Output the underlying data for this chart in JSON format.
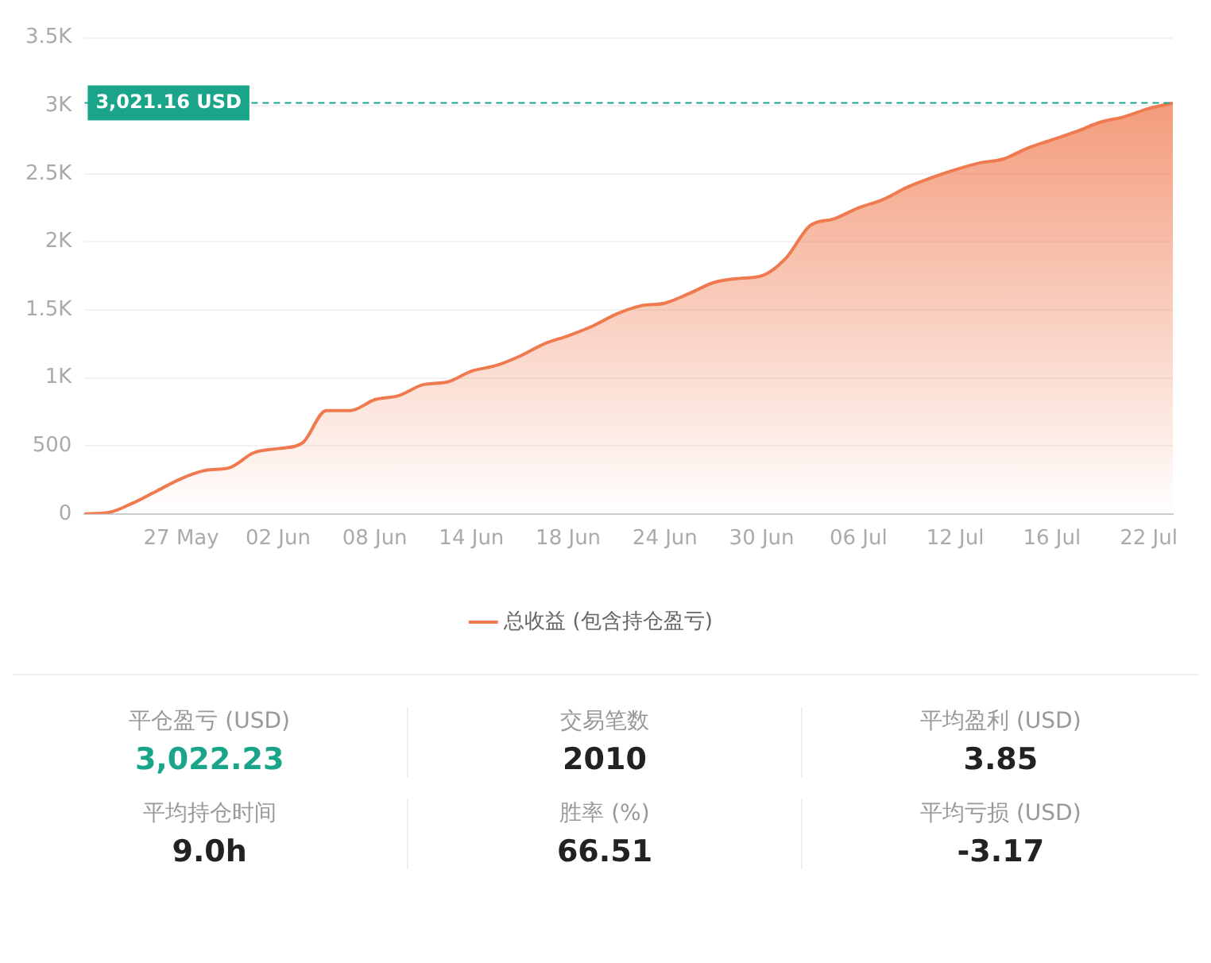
{
  "chart_data": [
    {
      "type": "area",
      "categories": [
        null,
        null,
        null,
        null,
        "27 May",
        null,
        null,
        null,
        "02 Jun",
        null,
        null,
        null,
        "08 Jun",
        null,
        null,
        null,
        "14 Jun",
        null,
        null,
        null,
        "18 Jun",
        null,
        null,
        null,
        "24 Jun",
        null,
        null,
        null,
        "30 Jun",
        null,
        null,
        null,
        "06 Jul",
        null,
        null,
        null,
        "12 Jul",
        null,
        null,
        null,
        "16 Jul",
        null,
        null,
        null,
        "22 Jul",
        null
      ],
      "series": [
        {
          "name": "总收益 (包含持仓盈亏)",
          "color": "#f07a4f",
          "values": [
            0,
            10,
            80,
            170,
            260,
            320,
            340,
            450,
            480,
            520,
            760,
            760,
            840,
            870,
            950,
            970,
            1050,
            1090,
            1160,
            1250,
            1310,
            1380,
            1470,
            1530,
            1550,
            1620,
            1700,
            1730,
            1750,
            1880,
            2120,
            2170,
            2250,
            2310,
            2400,
            2470,
            2530,
            2580,
            2610,
            2690,
            2750,
            2810,
            2880,
            2920,
            2980,
            3021.16
          ]
        }
      ],
      "ylim": [
        0,
        3500
      ],
      "yticks": [
        0,
        500,
        {
          "value": 1000,
          "label": "1K"
        },
        {
          "value": 1500,
          "label": "1.5K"
        },
        {
          "value": 2000,
          "label": "2K"
        },
        {
          "value": 2500,
          "label": "2.5K"
        },
        {
          "value": 3000,
          "label": "3K"
        },
        {
          "value": 3500,
          "label": "3.5K"
        }
      ],
      "grid": "y",
      "legend": "bottom",
      "ref_lines": [
        {
          "axis": "y",
          "value": 3021.16,
          "label": "3,021.16 USD",
          "color": "#1aa58a",
          "line_style": "dashed"
        }
      ]
    },
    {
      "type": "other",
      "categories": [
        "平仓盈亏 (USD)",
        "交易笔数",
        "平均盈利 (USD)",
        "平均持仓时间",
        "胜率 (%)",
        "平均亏损 (USD)"
      ],
      "value_labels": [
        "3,022.23",
        "2010",
        "3.85",
        "9.0h",
        "66.51",
        "-3.17"
      ],
      "colors": [
        "#1aa58a",
        "#222222",
        "#222222",
        "#222222",
        "#222222",
        "#222222"
      ]
    }
  ]
}
